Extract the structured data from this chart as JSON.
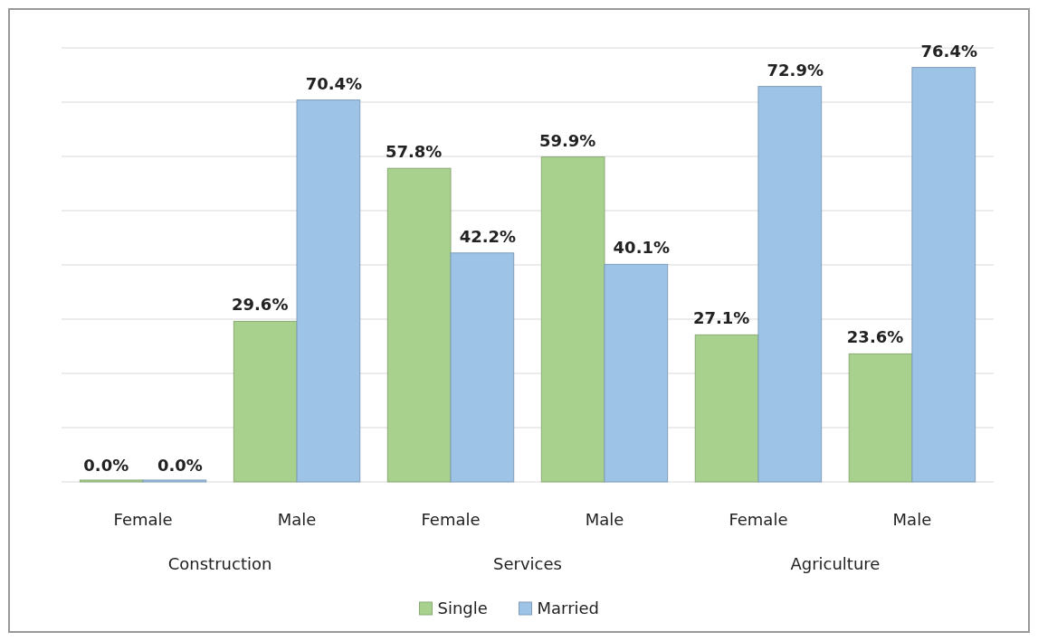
{
  "chart_data": {
    "type": "bar",
    "categories": [
      "Female",
      "Male",
      "Female",
      "Male",
      "Female",
      "Male"
    ],
    "series": [
      {
        "name": "Single",
        "color": "#a9d18e",
        "values": [
          0.0,
          29.6,
          57.8,
          59.9,
          27.1,
          23.6
        ],
        "value_labels": [
          "0.0%",
          "29.6%",
          "57.8%",
          "59.9%",
          "27.1%",
          "23.6%"
        ]
      },
      {
        "name": "Married",
        "color": "#9dc3e6",
        "values": [
          0.0,
          70.4,
          42.2,
          40.1,
          72.9,
          76.4
        ],
        "value_labels": [
          "0.0%",
          "70.4%",
          "42.2%",
          "40.1%",
          "72.9%",
          "76.4%"
        ]
      }
    ],
    "annotations": [
      "Construction",
      "Services",
      "Agriculture"
    ],
    "ylim": [
      0,
      80
    ],
    "yticks": [
      {
        "value": 0,
        "label": null
      },
      {
        "value": 10,
        "label": null
      },
      {
        "value": 20,
        "label": null
      },
      {
        "value": 30,
        "label": null
      },
      {
        "value": 40,
        "label": null
      },
      {
        "value": 50,
        "label": null
      },
      {
        "value": 60,
        "label": null
      },
      {
        "value": 70,
        "label": null
      },
      {
        "value": 80,
        "label": null
      }
    ],
    "tick_labels": "x",
    "grid": "y",
    "legend": "bottom"
  }
}
